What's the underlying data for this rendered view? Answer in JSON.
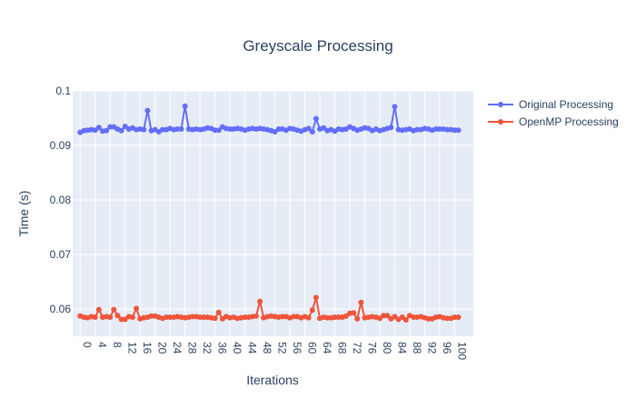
{
  "chart_data": {
    "type": "line",
    "title": "Greyscale Processing",
    "xlabel": "Iterations",
    "ylabel": "Time (s)",
    "xlim": [
      -2,
      105
    ],
    "ylim": [
      0.055,
      0.1
    ],
    "x_ticks": [
      0,
      4,
      8,
      12,
      16,
      20,
      24,
      28,
      32,
      36,
      40,
      44,
      48,
      52,
      56,
      60,
      64,
      68,
      72,
      76,
      80,
      84,
      88,
      92,
      96,
      100
    ],
    "x_tick_labels": [
      "0",
      "4",
      "8",
      "12",
      "16",
      "20",
      "24",
      "28",
      "32",
      "36",
      "40",
      "44",
      "48",
      "52",
      "56",
      "60",
      "64",
      "68",
      "72",
      "76",
      "80",
      "84",
      "88",
      "92",
      "96",
      "100"
    ],
    "y_ticks": [
      0.06,
      0.07,
      0.08,
      0.09,
      0.1
    ],
    "y_tick_labels": [
      "0.06",
      "0.07",
      "0.08",
      "0.09",
      "0.1"
    ],
    "grid": true,
    "legend_position": "top-right",
    "x": [
      0,
      1,
      2,
      3,
      4,
      5,
      6,
      7,
      8,
      9,
      10,
      11,
      12,
      13,
      14,
      15,
      16,
      17,
      18,
      19,
      20,
      21,
      22,
      23,
      24,
      25,
      26,
      27,
      28,
      29,
      30,
      31,
      32,
      33,
      34,
      35,
      36,
      37,
      38,
      39,
      40,
      41,
      42,
      43,
      44,
      45,
      46,
      47,
      48,
      49,
      50,
      51,
      52,
      53,
      54,
      55,
      56,
      57,
      58,
      59,
      60,
      61,
      62,
      63,
      64,
      65,
      66,
      67,
      68,
      69,
      70,
      71,
      72,
      73,
      74,
      75,
      76,
      77,
      78,
      79,
      80,
      81,
      82,
      83,
      84,
      85,
      86,
      87,
      88,
      89,
      90,
      91,
      92,
      93,
      94,
      95,
      96,
      97,
      98,
      99,
      100,
      101
    ],
    "series": [
      {
        "name": "Original Processing",
        "color": "#636efa",
        "values": [
          0.0924,
          0.0927,
          0.0928,
          0.0929,
          0.0928,
          0.0933,
          0.0926,
          0.0927,
          0.0934,
          0.0934,
          0.093,
          0.0927,
          0.0935,
          0.093,
          0.0932,
          0.0929,
          0.093,
          0.0929,
          0.0964,
          0.0927,
          0.0929,
          0.0925,
          0.0929,
          0.0929,
          0.0931,
          0.0929,
          0.093,
          0.093,
          0.0972,
          0.093,
          0.0929,
          0.093,
          0.0929,
          0.093,
          0.0932,
          0.0931,
          0.0928,
          0.0928,
          0.0934,
          0.0931,
          0.093,
          0.093,
          0.0931,
          0.093,
          0.0928,
          0.093,
          0.0931,
          0.093,
          0.0931,
          0.093,
          0.0929,
          0.0927,
          0.0925,
          0.093,
          0.093,
          0.0928,
          0.0931,
          0.093,
          0.0928,
          0.0926,
          0.0929,
          0.0931,
          0.0925,
          0.0949,
          0.093,
          0.0932,
          0.0927,
          0.0929,
          0.0926,
          0.093,
          0.0929,
          0.093,
          0.0934,
          0.0931,
          0.0928,
          0.093,
          0.0932,
          0.0931,
          0.0927,
          0.093,
          0.0927,
          0.0929,
          0.0931,
          0.0933,
          0.0971,
          0.0929,
          0.0928,
          0.0929,
          0.093,
          0.0927,
          0.0929,
          0.0929,
          0.0931,
          0.093,
          0.0928,
          0.093,
          0.093,
          0.093,
          0.0929,
          0.0929,
          0.0928,
          0.0928
        ]
      },
      {
        "name": "OpenMP Processing",
        "color": "#ef553b",
        "values": [
          0.0587,
          0.0585,
          0.0584,
          0.0586,
          0.0585,
          0.0599,
          0.0585,
          0.0586,
          0.0585,
          0.0599,
          0.0588,
          0.0581,
          0.0581,
          0.0586,
          0.0585,
          0.0601,
          0.0582,
          0.0584,
          0.0585,
          0.0587,
          0.0587,
          0.0585,
          0.0583,
          0.0585,
          0.0585,
          0.0585,
          0.0586,
          0.0585,
          0.0584,
          0.0585,
          0.0586,
          0.0586,
          0.0585,
          0.0585,
          0.0585,
          0.0584,
          0.0583,
          0.0594,
          0.0582,
          0.0586,
          0.0584,
          0.0585,
          0.0583,
          0.0584,
          0.0585,
          0.0585,
          0.0586,
          0.0587,
          0.0614,
          0.0584,
          0.0586,
          0.0587,
          0.0586,
          0.0585,
          0.0586,
          0.0586,
          0.0584,
          0.0586,
          0.0586,
          0.0584,
          0.0586,
          0.0584,
          0.0598,
          0.0621,
          0.0583,
          0.0585,
          0.0584,
          0.0584,
          0.0585,
          0.0585,
          0.0585,
          0.0587,
          0.0592,
          0.0593,
          0.0582,
          0.0612,
          0.0584,
          0.0585,
          0.0586,
          0.0585,
          0.0583,
          0.0588,
          0.0588,
          0.0582,
          0.0586,
          0.0581,
          0.0585,
          0.058,
          0.0588,
          0.0585,
          0.0585,
          0.0586,
          0.0584,
          0.0582,
          0.0582,
          0.0585,
          0.0586,
          0.0584,
          0.0583,
          0.0583,
          0.0585,
          0.0585
        ]
      }
    ]
  }
}
